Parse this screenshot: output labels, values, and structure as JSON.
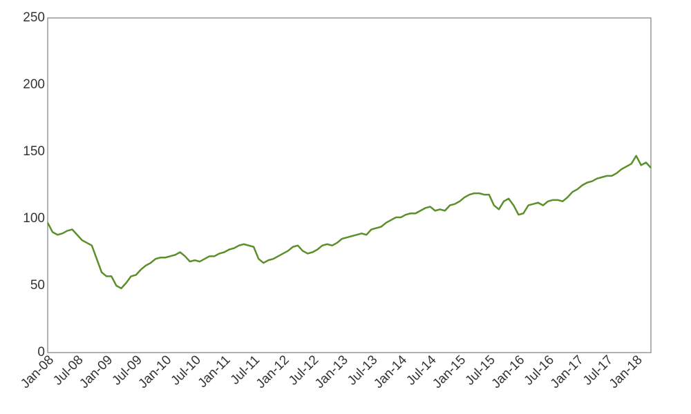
{
  "chart_data": {
    "type": "line",
    "x": [
      "2008-01",
      "2008-02",
      "2008-03",
      "2008-04",
      "2008-05",
      "2008-06",
      "2008-07",
      "2008-08",
      "2008-09",
      "2008-10",
      "2008-11",
      "2008-12",
      "2009-01",
      "2009-02",
      "2009-03",
      "2009-04",
      "2009-05",
      "2009-06",
      "2009-07",
      "2009-08",
      "2009-09",
      "2009-10",
      "2009-11",
      "2009-12",
      "2010-01",
      "2010-02",
      "2010-03",
      "2010-04",
      "2010-05",
      "2010-06",
      "2010-07",
      "2010-08",
      "2010-09",
      "2010-10",
      "2010-11",
      "2010-12",
      "2011-01",
      "2011-02",
      "2011-03",
      "2011-04",
      "2011-05",
      "2011-06",
      "2011-07",
      "2011-08",
      "2011-09",
      "2011-10",
      "2011-11",
      "2011-12",
      "2012-01",
      "2012-02",
      "2012-03",
      "2012-04",
      "2012-05",
      "2012-06",
      "2012-07",
      "2012-08",
      "2012-09",
      "2012-10",
      "2012-11",
      "2012-12",
      "2013-01",
      "2013-02",
      "2013-03",
      "2013-04",
      "2013-05",
      "2013-06",
      "2013-07",
      "2013-08",
      "2013-09",
      "2013-10",
      "2013-11",
      "2013-12",
      "2014-01",
      "2014-02",
      "2014-03",
      "2014-04",
      "2014-05",
      "2014-06",
      "2014-07",
      "2014-08",
      "2014-09",
      "2014-10",
      "2014-11",
      "2014-12",
      "2015-01",
      "2015-02",
      "2015-03",
      "2015-04",
      "2015-05",
      "2015-06",
      "2015-07",
      "2015-08",
      "2015-09",
      "2015-10",
      "2015-11",
      "2015-12",
      "2016-01",
      "2016-02",
      "2016-03",
      "2016-04",
      "2016-05",
      "2016-06",
      "2016-07",
      "2016-08",
      "2016-09",
      "2016-10",
      "2016-11",
      "2016-12",
      "2017-01",
      "2017-02",
      "2017-03",
      "2017-04",
      "2017-05",
      "2017-06",
      "2017-07",
      "2017-08",
      "2017-09",
      "2017-10",
      "2017-11",
      "2017-12",
      "2018-01",
      "2018-02",
      "2018-03",
      "2018-04"
    ],
    "series": [
      {
        "color": "#5a8f29",
        "values": [
          97,
          90,
          88,
          89,
          91,
          92,
          88,
          84,
          82,
          80,
          70,
          60,
          57,
          57,
          50,
          48,
          52,
          57,
          58,
          62,
          65,
          67,
          70,
          71,
          71,
          72,
          73,
          75,
          72,
          68,
          69,
          68,
          70,
          72,
          72,
          74,
          75,
          77,
          78,
          80,
          81,
          80,
          79,
          70,
          67,
          69,
          70,
          72,
          74,
          76,
          79,
          80,
          76,
          74,
          75,
          77,
          80,
          81,
          80,
          82,
          85,
          86,
          87,
          88,
          89,
          88,
          92,
          93,
          94,
          97,
          99,
          101,
          101,
          103,
          104,
          104,
          106,
          108,
          109,
          106,
          107,
          106,
          110,
          111,
          113,
          116,
          118,
          119,
          119,
          118,
          118,
          110,
          107,
          113,
          115,
          110,
          103,
          104,
          110,
          111,
          112,
          110,
          113,
          114,
          114,
          113,
          116,
          120,
          122,
          125,
          127,
          128,
          130,
          131,
          132,
          132,
          134,
          137,
          139,
          141,
          147,
          140,
          142,
          138
        ]
      }
    ],
    "xlim": [
      "2008-01",
      "2018-04"
    ],
    "xticks": [
      {
        "value": "2008-01",
        "label": "Jan-08"
      },
      {
        "value": "2008-07",
        "label": "Jul-08"
      },
      {
        "value": "2009-01",
        "label": "Jan-09"
      },
      {
        "value": "2009-07",
        "label": "Jul-09"
      },
      {
        "value": "2010-01",
        "label": "Jan-10"
      },
      {
        "value": "2010-07",
        "label": "Jul-10"
      },
      {
        "value": "2011-01",
        "label": "Jan-11"
      },
      {
        "value": "2011-07",
        "label": "Jul-11"
      },
      {
        "value": "2012-01",
        "label": "Jan-12"
      },
      {
        "value": "2012-07",
        "label": "Jul-12"
      },
      {
        "value": "2013-01",
        "label": "Jan-13"
      },
      {
        "value": "2013-07",
        "label": "Jul-13"
      },
      {
        "value": "2014-01",
        "label": "Jan-14"
      },
      {
        "value": "2014-07",
        "label": "Jul-14"
      },
      {
        "value": "2015-01",
        "label": "Jan-15"
      },
      {
        "value": "2015-07",
        "label": "Jul-15"
      },
      {
        "value": "2016-01",
        "label": "Jan-16"
      },
      {
        "value": "2016-07",
        "label": "Jul-16"
      },
      {
        "value": "2017-01",
        "label": "Jan-17"
      },
      {
        "value": "2017-07",
        "label": "Jul-17"
      },
      {
        "value": "2018-01",
        "label": "Jan-18"
      }
    ],
    "ylim": [
      0,
      250
    ],
    "yticks": [
      0,
      50,
      100,
      150,
      200,
      250
    ],
    "grid": false
  }
}
